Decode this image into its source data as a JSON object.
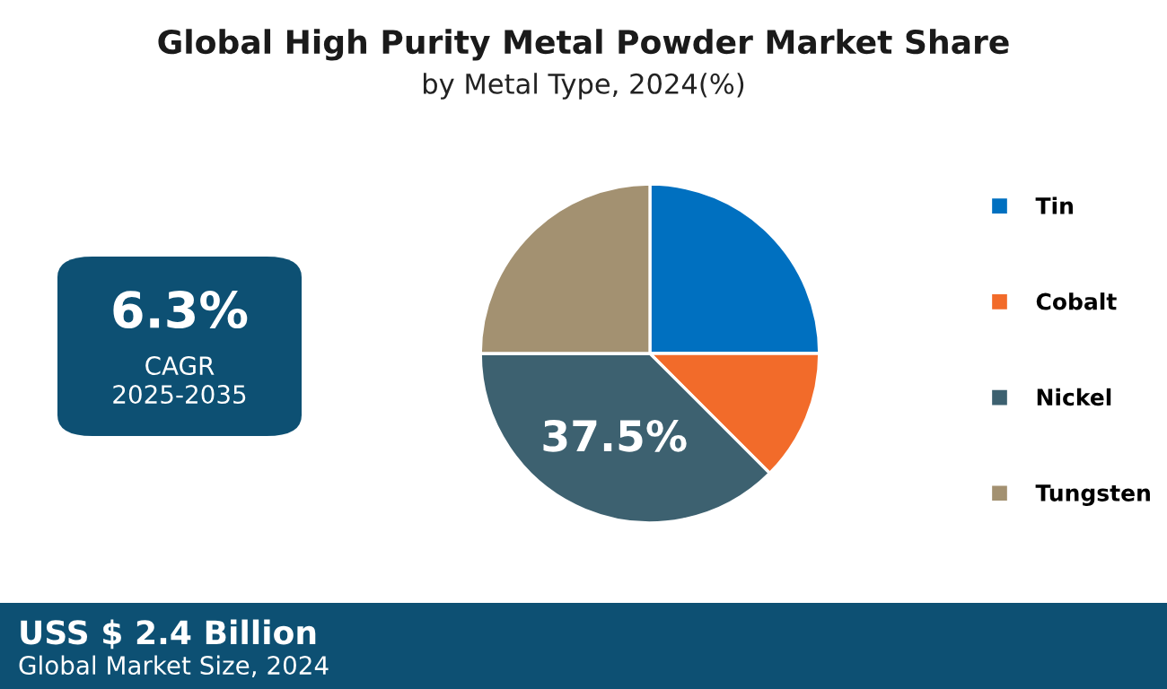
{
  "chart_data": {
    "type": "pie",
    "title": "Global High Purity Metal Powder Market Share",
    "subtitle": "by Metal Type, 2024(%)",
    "categories": [
      "Tin",
      "Cobalt",
      "Nickel",
      "Tungsten"
    ],
    "values": [
      25,
      12.5,
      37.5,
      25
    ],
    "colors": [
      "#0070c0",
      "#f26b2a",
      "#3d6170",
      "#a39171"
    ],
    "value_labels": [
      null,
      null,
      "37.5%",
      null
    ],
    "legend": "right",
    "annotations": [
      "6.3%",
      "CAGR",
      "2025-2035",
      "USS $ 2.4 Billion",
      "Global Market Size, 2024"
    ]
  }
}
